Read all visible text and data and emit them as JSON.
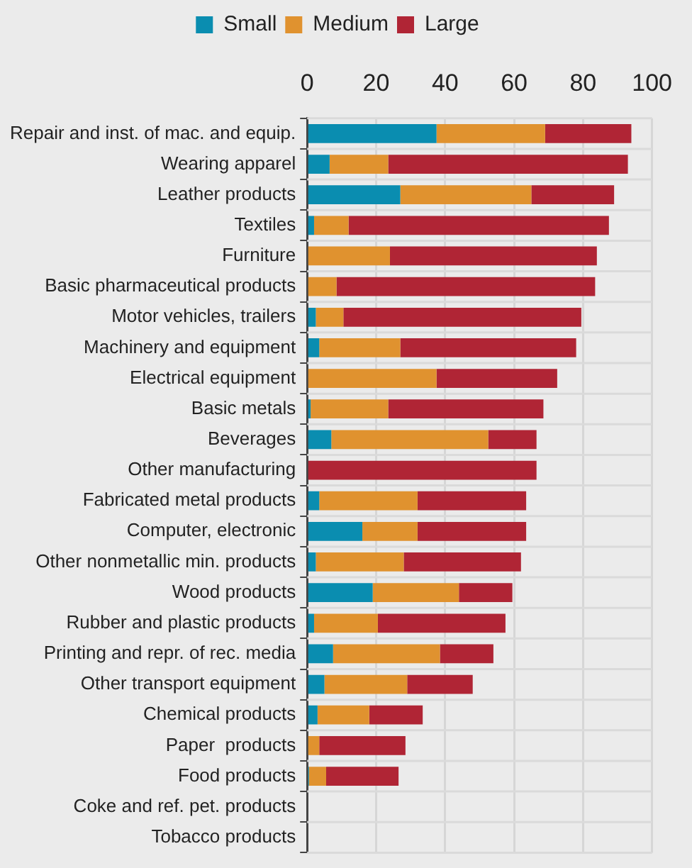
{
  "chart_data": {
    "type": "bar",
    "orientation": "horizontal",
    "stacked": true,
    "categories": [
      "Repair and inst. of mac. and equip.",
      "Wearing apparel",
      "Leather products",
      "Textiles",
      "Furniture",
      "Basic pharmaceutical products",
      "Motor vehicles, trailers",
      "Machinery and equipment",
      "Electrical equipment",
      "Basic metals",
      "Beverages",
      "Other manufacturing",
      "Fabricated metal products",
      "Computer, electronic",
      "Other nonmetallic min. products",
      "Wood products",
      "Rubber and plastic products",
      "Printing and repr. of rec. media",
      "Other transport equipment",
      "Chemical products",
      "Paper  products",
      "Food products",
      "Coke and ref. pet. products",
      "Tobacco products"
    ],
    "series": [
      {
        "name": "Small",
        "color": "#0a8db0",
        "values": [
          37.5,
          6.5,
          27,
          2,
          0,
          0,
          2.5,
          3.5,
          0,
          1,
          7,
          0,
          3.5,
          16,
          2.5,
          19,
          2,
          7.5,
          5,
          3,
          0,
          0.5,
          0,
          0
        ]
      },
      {
        "name": "Medium",
        "color": "#e0922f",
        "values": [
          31.5,
          17,
          38,
          10,
          24,
          8.5,
          8,
          23.5,
          37.5,
          22.5,
          45.5,
          0,
          28.5,
          16,
          25.5,
          25,
          18.5,
          31,
          24,
          15,
          3.5,
          5,
          0,
          0
        ]
      },
      {
        "name": "Large",
        "color": "#b02535",
        "values": [
          25,
          69.5,
          24,
          75.5,
          60,
          75,
          69,
          51,
          35,
          45,
          14,
          66.5,
          31.5,
          31.5,
          34,
          15.5,
          37,
          15.5,
          19,
          15.5,
          25,
          21,
          0,
          0
        ]
      }
    ],
    "xlim": [
      0,
      100
    ],
    "xticks": [
      0,
      20,
      40,
      60,
      80,
      100
    ],
    "grid": "x",
    "legend": "top"
  }
}
